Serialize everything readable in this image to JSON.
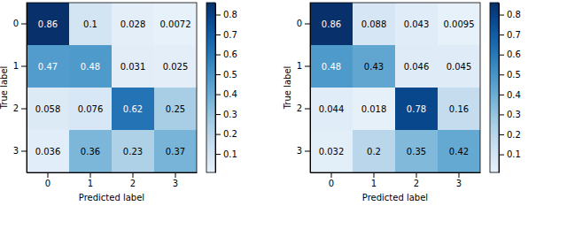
{
  "chart_data": [
    {
      "type": "heatmap",
      "x_label": "Predicted label",
      "y_label": "True label",
      "categories": [
        "0",
        "1",
        "2",
        "3"
      ],
      "y_categories": [
        "0",
        "1",
        "2",
        "3"
      ],
      "cells": [
        [
          0.86,
          0.1,
          0.028,
          0.0072
        ],
        [
          0.47,
          0.48,
          0.031,
          0.025
        ],
        [
          0.058,
          0.076,
          0.62,
          0.25
        ],
        [
          0.036,
          0.36,
          0.23,
          0.37
        ]
      ],
      "data_labels": true,
      "color": "Blues",
      "colorbar_range": [
        0.0072,
        0.86
      ],
      "colorbar_ticks": [
        0.1,
        0.2,
        0.3,
        0.4,
        0.5,
        0.6,
        0.7,
        0.8
      ]
    },
    {
      "type": "heatmap",
      "x_label": "Predicted label",
      "y_label": "True label",
      "categories": [
        "0",
        "1",
        "2",
        "3"
      ],
      "y_categories": [
        "0",
        "1",
        "2",
        "3"
      ],
      "cells": [
        [
          0.86,
          0.088,
          0.043,
          0.0095
        ],
        [
          0.48,
          0.43,
          0.046,
          0.045
        ],
        [
          0.044,
          0.018,
          0.78,
          0.16
        ],
        [
          0.032,
          0.2,
          0.35,
          0.42
        ]
      ],
      "data_labels": true,
      "color": "Blues",
      "colorbar_range": [
        0.0095,
        0.86
      ],
      "colorbar_ticks": [
        0.1,
        0.2,
        0.3,
        0.4,
        0.5,
        0.6,
        0.7,
        0.8
      ]
    }
  ]
}
